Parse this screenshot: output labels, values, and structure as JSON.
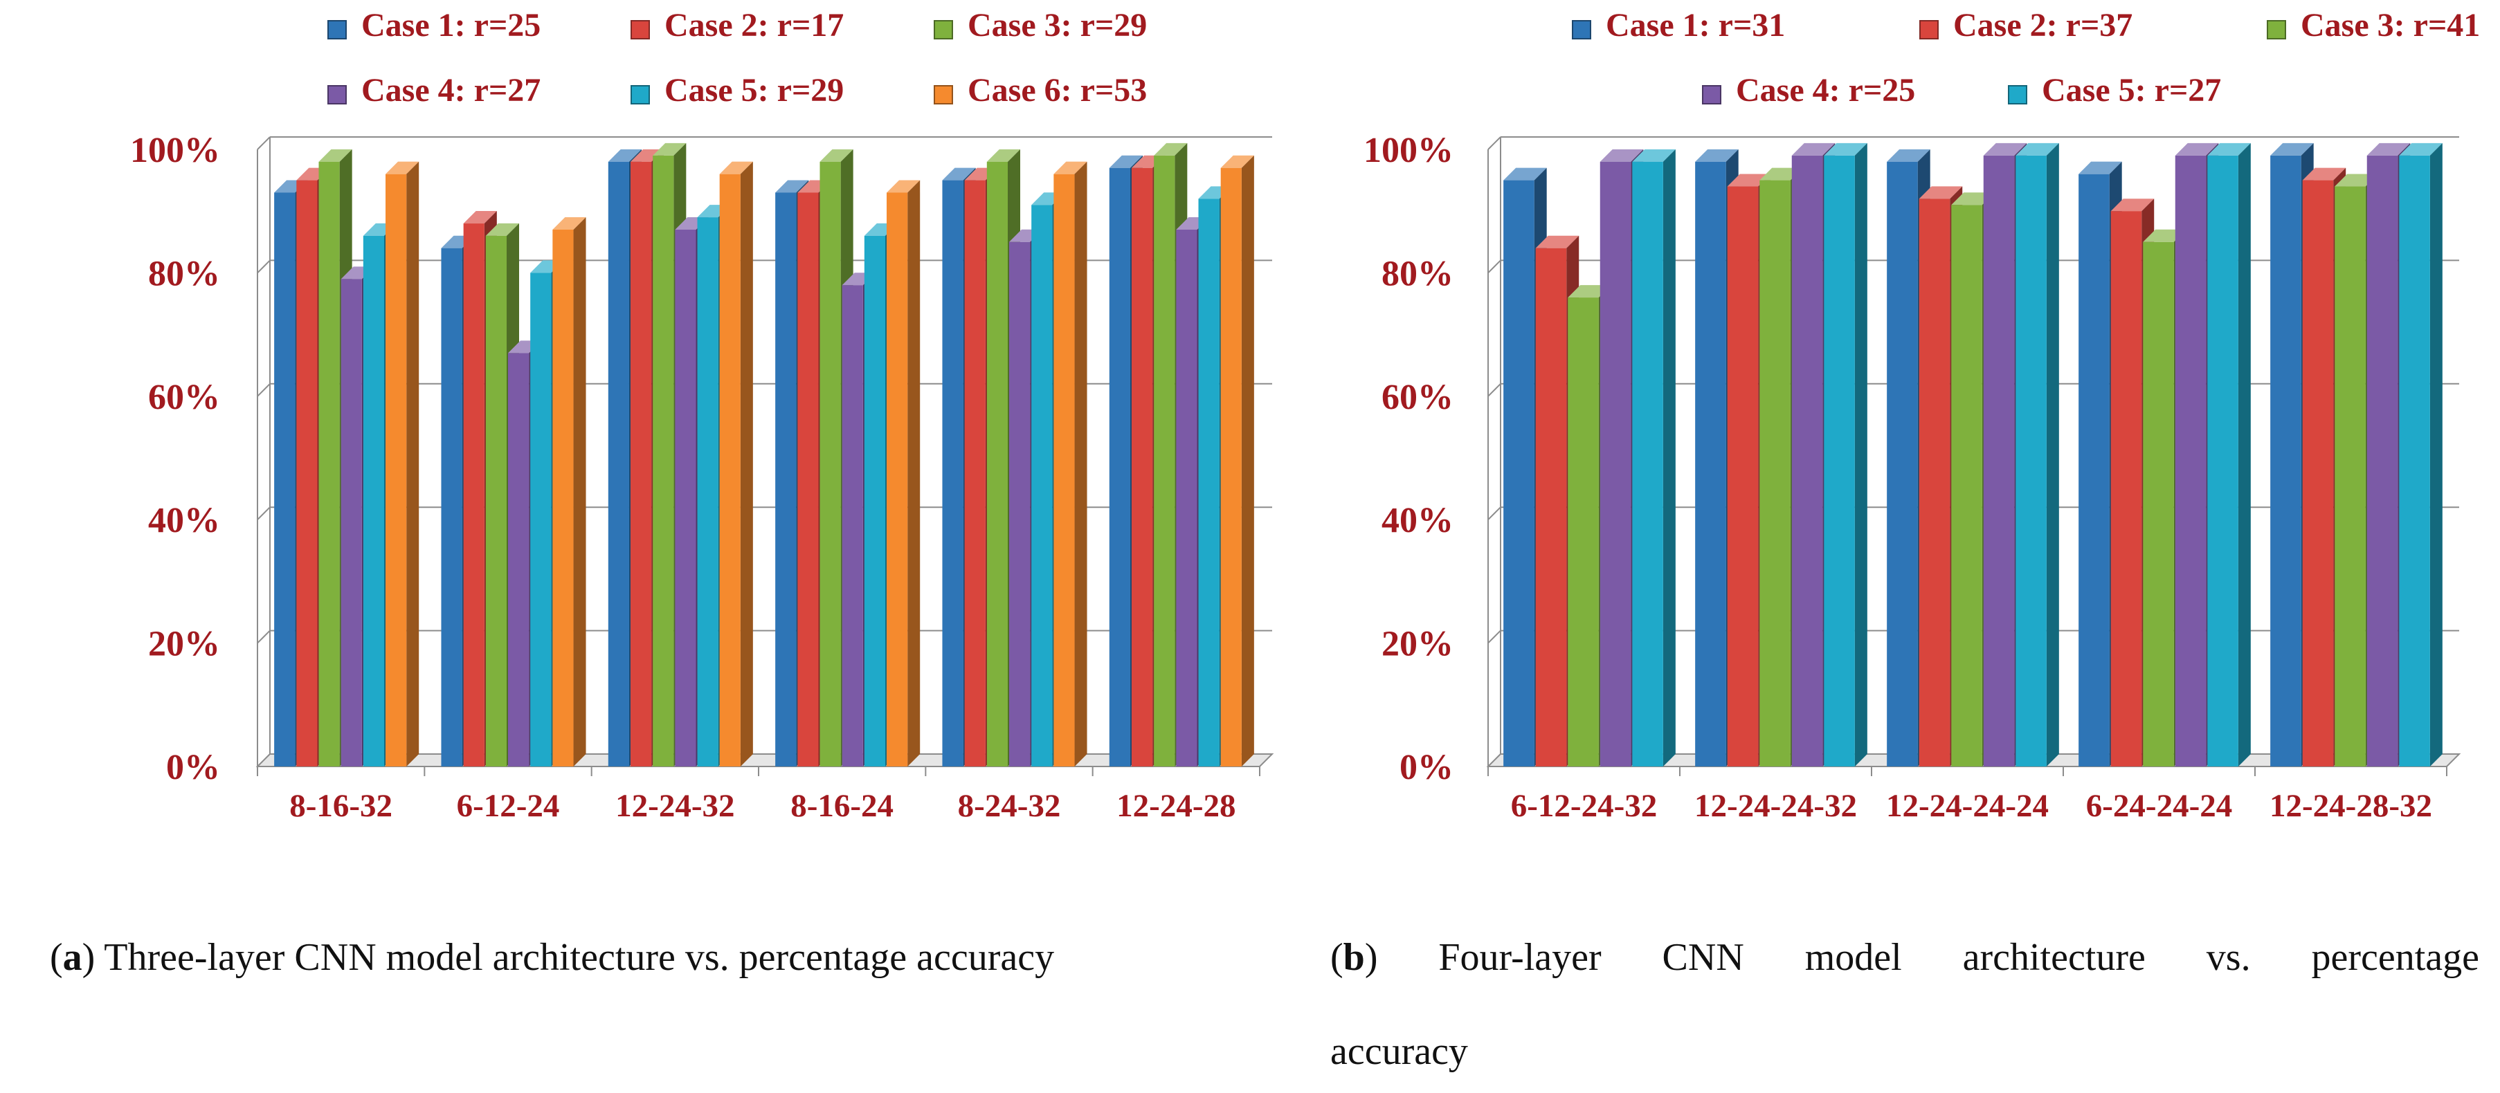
{
  "chart_data": [
    {
      "type": "bar",
      "panel": "a",
      "title": "",
      "caption_label": "a",
      "caption_text": "Three-layer CNN model architecture vs. percentage accuracy",
      "xlabel": "",
      "ylabel": "",
      "ylim": [
        0,
        100
      ],
      "y_ticks": [
        "0%",
        "20%",
        "40%",
        "60%",
        "80%",
        "100%"
      ],
      "categories": [
        "8-16-32",
        "6-12-24",
        "12-24-32",
        "8-16-24",
        "8-24-32",
        "12-24-28"
      ],
      "series": [
        {
          "name": "Case 1: r=25",
          "color": "#2e75b6",
          "values": [
            93,
            84,
            98,
            93,
            95,
            97
          ]
        },
        {
          "name": "Case 2: r=17",
          "color": "#d9453d",
          "values": [
            95,
            88,
            98,
            93,
            95,
            97
          ]
        },
        {
          "name": "Case 3: r=29",
          "color": "#7fb13d",
          "values": [
            98,
            86,
            99,
            98,
            98,
            99
          ]
        },
        {
          "name": "Case 4: r=27",
          "color": "#7b5aa6",
          "values": [
            79,
            67,
            87,
            78,
            85,
            87
          ]
        },
        {
          "name": "Case 5: r=29",
          "color": "#1fa9c9",
          "values": [
            86,
            80,
            89,
            86,
            91,
            92
          ]
        },
        {
          "name": "Case 6: r=53",
          "color": "#f58a2e",
          "values": [
            96,
            87,
            96,
            93,
            96,
            97
          ]
        }
      ]
    },
    {
      "type": "bar",
      "panel": "b",
      "title": "",
      "caption_label": "b",
      "caption_text_line1": "Four-layer CNN model architecture vs. percentage",
      "caption_text_line2": "accuracy",
      "xlabel": "",
      "ylabel": "",
      "ylim": [
        0,
        100
      ],
      "y_ticks": [
        "0%",
        "20%",
        "40%",
        "60%",
        "80%",
        "100%"
      ],
      "categories": [
        "6-12-24-32",
        "12-24-24-32",
        "12-24-24-24",
        "6-24-24-24",
        "12-24-28-32"
      ],
      "series": [
        {
          "name": "Case 1: r=31",
          "color": "#2e75b6",
          "values": [
            95,
            98,
            98,
            96,
            99
          ]
        },
        {
          "name": "Case 2: r=37",
          "color": "#d9453d",
          "values": [
            84,
            94,
            92,
            90,
            95
          ]
        },
        {
          "name": "Case 3: r=41",
          "color": "#7fb13d",
          "values": [
            76,
            95,
            91,
            85,
            94
          ]
        },
        {
          "name": "Case 4: r=25",
          "color": "#7b5aa6",
          "values": [
            98,
            99,
            99,
            99,
            99
          ]
        },
        {
          "name": "Case 5: r=27",
          "color": "#1fa9c9",
          "values": [
            98,
            99,
            99,
            99,
            99
          ]
        }
      ]
    }
  ]
}
